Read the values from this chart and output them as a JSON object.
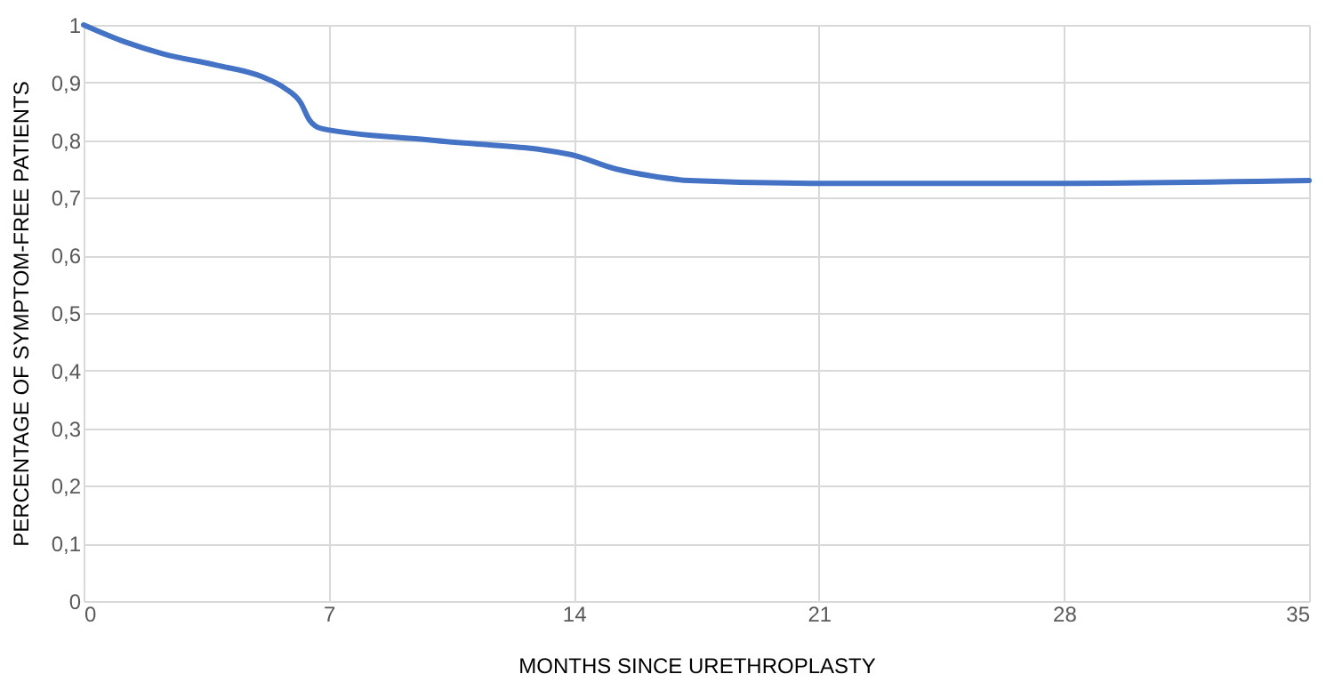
{
  "chart_data": {
    "type": "line",
    "xlabel": "MONTHS SINCE URETHROPLASTY",
    "ylabel": "PERCENTAGE OF SYMPTOM-FREE PATIENTS",
    "x": [
      0,
      1.2,
      2.25,
      3.8,
      5.1,
      5.75,
      6.2,
      6.45,
      6.8,
      9.9,
      13.9,
      15.2,
      16.2,
      17.3,
      20.8,
      27.7,
      35
    ],
    "series": [
      {
        "color": "#4472c4",
        "values": [
          1.0,
          0.97,
          0.95,
          0.93,
          0.91,
          0.89,
          0.865,
          0.835,
          0.82,
          0.8,
          0.775,
          0.75,
          0.738,
          0.73,
          0.725,
          0.725,
          0.73
        ]
      }
    ],
    "xlim": [
      0,
      35
    ],
    "xticks": [
      0,
      7,
      14,
      21,
      28,
      35
    ],
    "ylim": [
      0,
      1
    ],
    "yticks": [
      0,
      {
        "value": 0.1,
        "label": "0,1"
      },
      {
        "value": 0.2,
        "label": "0,2"
      },
      {
        "value": 0.3,
        "label": "0,3"
      },
      {
        "value": 0.4,
        "label": "0,4"
      },
      {
        "value": 0.5,
        "label": "0,5"
      },
      {
        "value": 0.6,
        "label": "0,6"
      },
      {
        "value": 0.7,
        "label": "0,7"
      },
      {
        "value": 0.8,
        "label": "0,8"
      },
      {
        "value": 0.9,
        "label": "0,9"
      },
      1
    ],
    "grid": true,
    "marker": "none",
    "line_style": "solid"
  }
}
